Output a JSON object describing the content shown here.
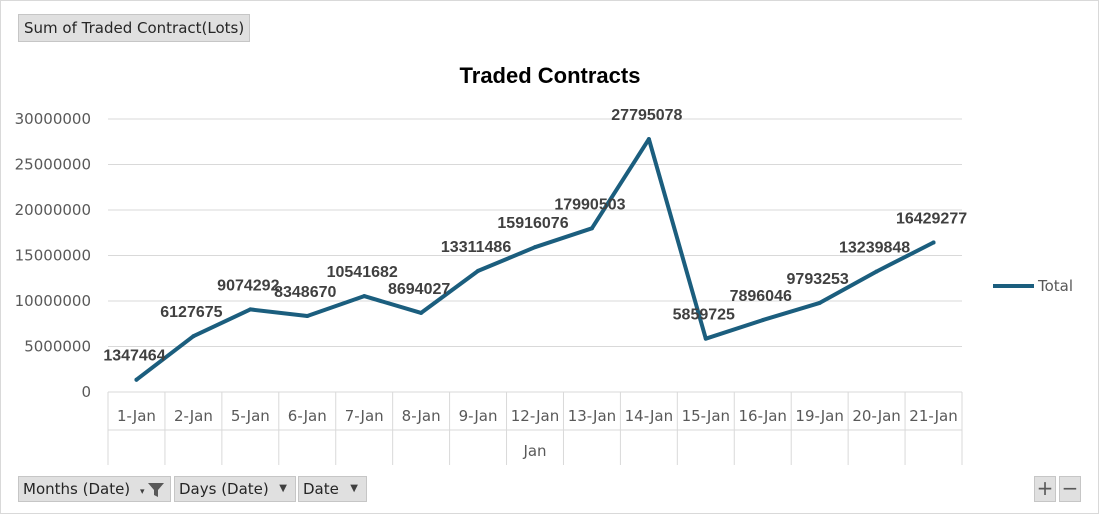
{
  "pivot": {
    "value_field": "Sum of Traded Contract(Lots)",
    "fields": [
      {
        "label": "Months (Date)",
        "icon": "filter-icon"
      },
      {
        "label": "Days (Date)",
        "icon": "dropdown-arrow-icon"
      },
      {
        "label": "Date",
        "icon": "dropdown-arrow-icon"
      }
    ],
    "zoom_in": "+",
    "zoom_out": "−"
  },
  "chart_data": {
    "type": "line",
    "title": "Traded Contracts",
    "xlabel": "",
    "ylabel": "",
    "group_label": "Jan",
    "categories": [
      "1-Jan",
      "2-Jan",
      "5-Jan",
      "6-Jan",
      "7-Jan",
      "8-Jan",
      "9-Jan",
      "12-Jan",
      "13-Jan",
      "14-Jan",
      "15-Jan",
      "16-Jan",
      "19-Jan",
      "20-Jan",
      "21-Jan"
    ],
    "series": [
      {
        "name": "Total",
        "color": "#1b5e7e",
        "values": [
          1347464,
          6127675,
          9074292,
          8348670,
          10541682,
          8694027,
          13311486,
          15916076,
          17990503,
          27795078,
          5859725,
          7896046,
          9793253,
          13239848,
          16429277
        ]
      }
    ],
    "ylim": [
      0,
      30000000
    ],
    "yticks": [
      "0",
      "5000000",
      "10000000",
      "15000000",
      "20000000",
      "25000000",
      "30000000"
    ],
    "grid": true,
    "legend": "right",
    "data_labels": true
  }
}
